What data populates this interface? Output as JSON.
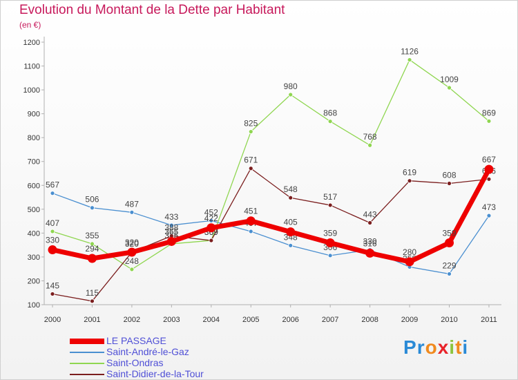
{
  "header": {
    "title": "Evolution du Montant de la Dette par Habitant",
    "subtitle": "(en €)"
  },
  "logo": {
    "text": "Proxiti",
    "letters": [
      "P",
      "r",
      "o",
      "x",
      "i",
      "t",
      "i"
    ],
    "colors": [
      "#2a8ad6",
      "#2a8ad6",
      "#f08a1e",
      "#e8232a",
      "#8cc43d",
      "#f08a1e",
      "#2a8ad6"
    ]
  },
  "chart_data": {
    "type": "line",
    "title": "Evolution du Montant de la Dette par Habitant",
    "subtitle": "(en €)",
    "xlabel": "",
    "ylabel": "",
    "x": [
      "2000",
      "2001",
      "2002",
      "2003",
      "2004",
      "2005",
      "2006",
      "2007",
      "2008",
      "2009",
      "2010",
      "2011"
    ],
    "yticks": [
      100,
      200,
      300,
      400,
      500,
      600,
      700,
      800,
      900,
      1000,
      1100,
      1200
    ],
    "ylim": [
      100,
      1200
    ],
    "grid": false,
    "legend_position": "bottom-left",
    "series": [
      {
        "name": "LE PASSAGE",
        "color": "#ee0000",
        "values": [
          330,
          294,
          320,
          365,
          422,
          451,
          405,
          359,
          316,
          280,
          359,
          667
        ]
      },
      {
        "name": "Saint-André-le-Gaz",
        "color": "#4a8fd0",
        "values": [
          567,
          506,
          487,
          433,
          452,
          407,
          348,
          306,
          330,
          258,
          229,
          473
        ]
      },
      {
        "name": "Saint-Ondras",
        "color": "#8fd650",
        "values": [
          407,
          355,
          248,
          355,
          369,
          825,
          980,
          868,
          768,
          1126,
          1009,
          869
        ]
      },
      {
        "name": "Saint-Didier-de-la-Tour",
        "color": "#7b1e1e",
        "values": [
          145,
          115,
          320,
          388,
          369,
          671,
          548,
          517,
          443,
          619,
          608,
          626
        ]
      }
    ]
  }
}
